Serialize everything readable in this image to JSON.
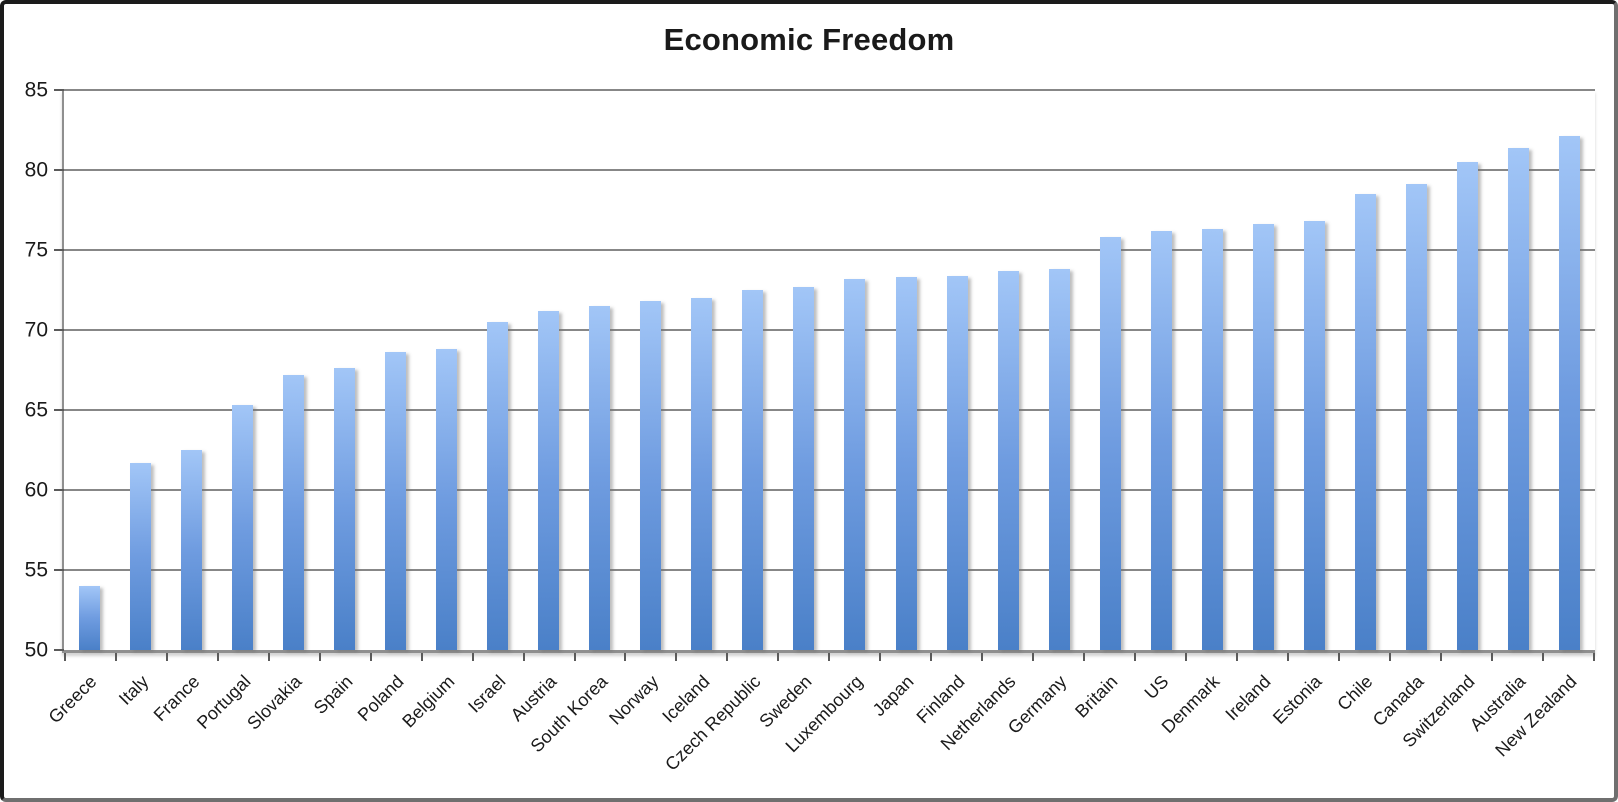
{
  "page": {
    "background": "#ffffff",
    "frame_border_color": "#1b1b1b"
  },
  "chart_data": {
    "type": "bar",
    "title": "Economic Freedom",
    "xlabel": "",
    "ylabel": "",
    "categories": [
      "Greece",
      "Italy",
      "France",
      "Portugal",
      "Slovakia",
      "Spain",
      "Poland",
      "Belgium",
      "Israel",
      "Austria",
      "South Korea",
      "Norway",
      "Iceland",
      "Czech Republic",
      "Sweden",
      "Luxembourg",
      "Japan",
      "Finland",
      "Netherlands",
      "Germany",
      "Britain",
      "US",
      "Denmark",
      "Ireland",
      "Estonia",
      "Chile",
      "Canada",
      "Switzerland",
      "Australia",
      "New Zealand"
    ],
    "values": [
      54.0,
      61.7,
      62.5,
      65.3,
      67.2,
      67.6,
      68.6,
      68.8,
      70.5,
      71.2,
      71.5,
      71.8,
      72.0,
      72.5,
      72.7,
      73.2,
      73.3,
      73.4,
      73.7,
      73.8,
      75.8,
      76.2,
      76.3,
      76.6,
      76.8,
      78.5,
      79.1,
      80.5,
      81.4,
      82.1
    ],
    "ylim": [
      50,
      85
    ],
    "yticks": [
      50,
      55,
      60,
      65,
      70,
      75,
      80,
      85
    ],
    "grid": true,
    "legend": "none",
    "colors": {
      "bar_gradient_top": "#a2c6f7",
      "bar_gradient_mid": "#6f9ce0",
      "bar_gradient_bottom": "#4a80c8",
      "gridline": "#878787",
      "axis": "#8f8f8f",
      "tick": "#5a5a5a",
      "text": "#1a1a1a"
    }
  }
}
